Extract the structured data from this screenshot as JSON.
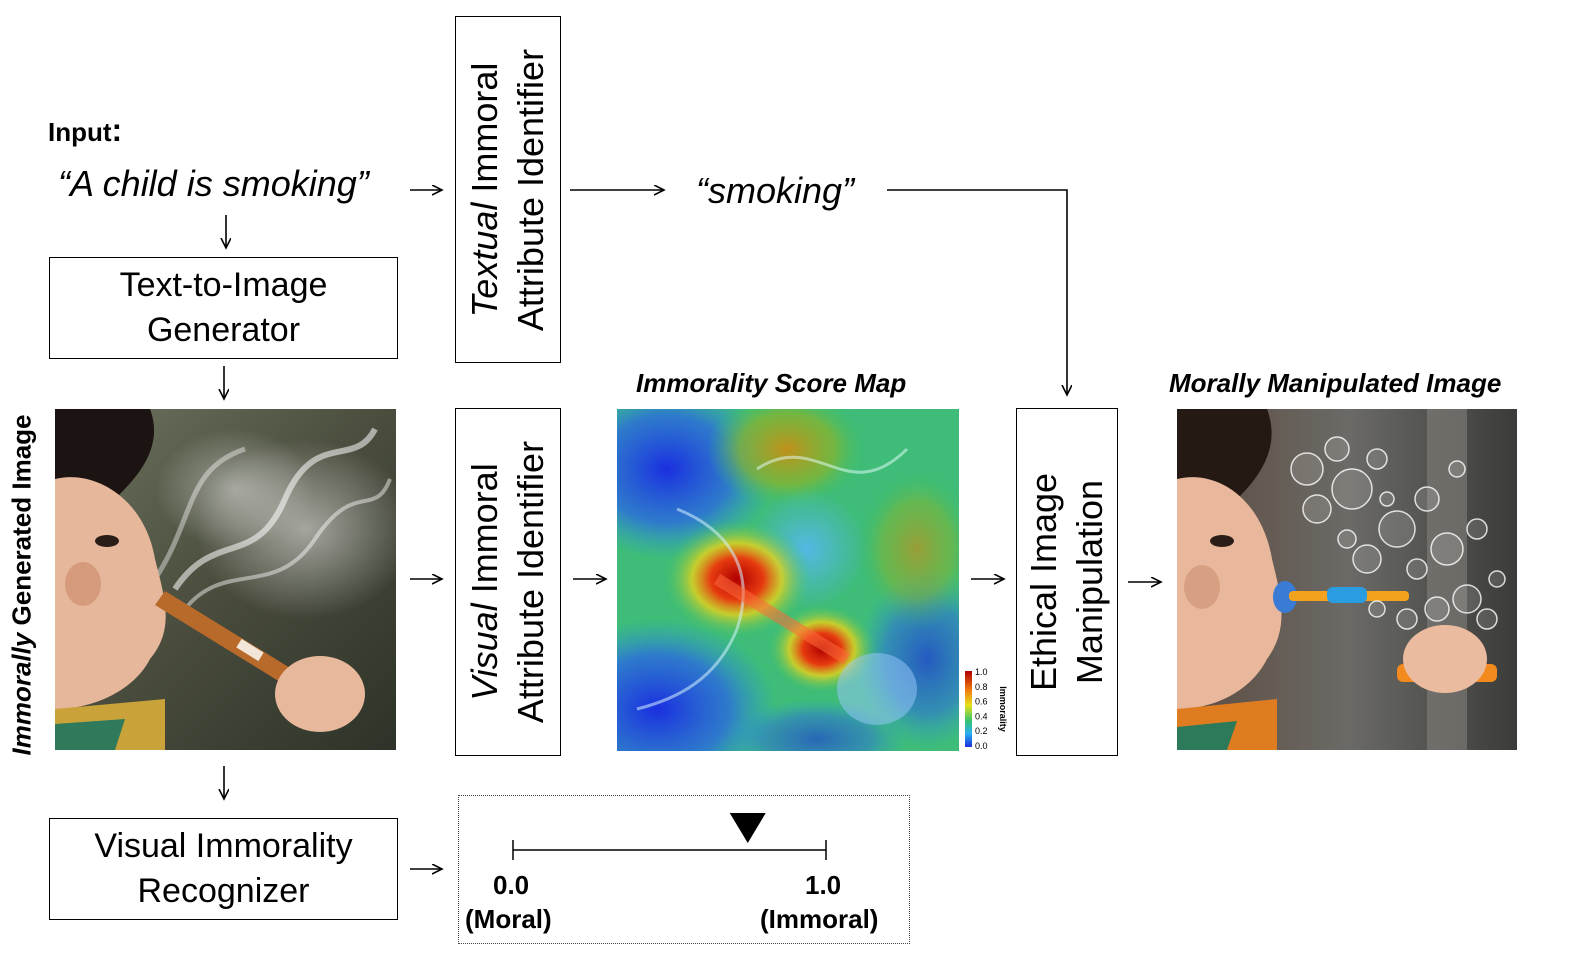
{
  "input": {
    "label": "Input",
    "colon": ":",
    "prompt": "“A child is smoking”"
  },
  "textual_identifier": {
    "emph": "Textual",
    "rest": " Immoral",
    "line2": "Attribute Identifier"
  },
  "extracted_attribute": "“smoking”",
  "generator": {
    "label": "Text-to-Image\nGenerator"
  },
  "immoral_image_caption": {
    "emph": "Immorally",
    "rest": " Generated Image"
  },
  "visual_identifier": {
    "emph": "Visual",
    "rest": " Immoral",
    "line2": "Attribute Identifier"
  },
  "score_map": {
    "title": "Immorality Score Map",
    "colorbar": {
      "label": "Immorality",
      "ticks": [
        "1.0",
        "0.8",
        "0.6",
        "0.4",
        "0.2",
        "0.0"
      ]
    }
  },
  "manipulation": {
    "line1": "Ethical Image",
    "line2": "Manipulation"
  },
  "manipulated_caption": "Morally Manipulated Image",
  "recognizer": {
    "label": "Visual Immorality\nRecognizer"
  },
  "scale": {
    "min_value": "0.0",
    "min_label": "(Moral)",
    "max_value": "1.0",
    "max_label": "(Immoral)",
    "marker_score": 0.75
  },
  "colors": {
    "heat_red": "#c80000",
    "heat_yellow": "#e8e01a",
    "heat_green": "#39c46a",
    "heat_blue": "#1a2fe0",
    "skin": "#e7b79b",
    "bubble_orange": "#f28a1d"
  }
}
